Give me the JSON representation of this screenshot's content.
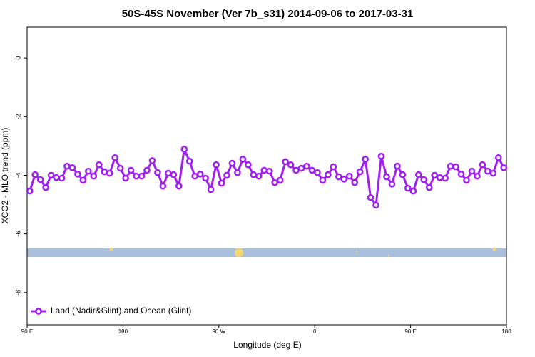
{
  "chart_data": {
    "type": "line",
    "title": "50S-45S November (Ver 7b_s31)   2014-09-06 to 2017-03-31",
    "xlabel": "Longitude (deg E)",
    "ylabel": "XCO2 - MLO trend (ppm)",
    "xlim": [
      90,
      540
    ],
    "ylim": [
      -9.1,
      1.05
    ],
    "xticks": [
      {
        "value": 90,
        "label": "90 E"
      },
      180,
      {
        "value": 270,
        "label": "90 W"
      },
      {
        "value": 360,
        "label": "0"
      },
      {
        "value": 450,
        "label": "90 E"
      },
      {
        "value": 540,
        "label": "180"
      }
    ],
    "yticks": [
      0,
      -2,
      -4,
      -6,
      -8
    ],
    "legend": "bottom-left",
    "x": [
      92.5,
      97.5,
      102.5,
      107.5,
      112.5,
      117.5,
      122.5,
      127.5,
      132.5,
      137.5,
      142.5,
      147.5,
      152.5,
      157.5,
      162.5,
      167.5,
      172.5,
      177.5,
      182.5,
      187.5,
      192.5,
      197.5,
      202.5,
      207.5,
      212.5,
      217.5,
      222.5,
      227.5,
      232.5,
      237.5,
      242.5,
      247.5,
      252.5,
      257.5,
      262.5,
      267.5,
      272.5,
      277.5,
      282.5,
      287.5,
      292.5,
      297.5,
      302.5,
      307.5,
      312.5,
      317.5,
      322.5,
      327.5,
      332.5,
      337.5,
      342.5,
      347.5,
      352.5,
      357.5,
      362.5,
      367.5,
      372.5,
      377.5,
      382.5,
      387.5,
      392.5,
      397.5,
      402.5,
      407.5,
      412.5,
      417.5,
      422.5,
      427.5,
      432.5,
      437.5,
      442.5,
      447.5,
      452.5,
      457.5,
      462.5,
      467.5,
      472.5,
      477.5,
      482.5,
      487.5,
      492.5,
      497.5,
      502.5,
      507.5,
      512.5,
      517.5,
      522.5,
      527.5,
      532.5,
      537.5
    ],
    "series": [
      {
        "name": "Land (Nadir&Glint) and Ocean (Glint)",
        "color": "#a020f0",
        "values": [
          -4.54,
          -3.98,
          -4.15,
          -4.42,
          -4.0,
          -4.08,
          -4.1,
          -3.69,
          -3.74,
          -3.96,
          -4.17,
          -3.86,
          -4.03,
          -3.64,
          -3.88,
          -3.93,
          -3.4,
          -3.76,
          -4.1,
          -3.83,
          -4.03,
          -4.03,
          -3.83,
          -3.5,
          -3.91,
          -4.37,
          -3.93,
          -3.98,
          -4.37,
          -3.11,
          -3.52,
          -4.03,
          -3.96,
          -4.1,
          -4.49,
          -3.64,
          -4.27,
          -4.0,
          -3.59,
          -3.91,
          -3.45,
          -3.64,
          -3.98,
          -4.03,
          -3.83,
          -3.86,
          -4.25,
          -4.17,
          -3.54,
          -3.64,
          -3.83,
          -3.76,
          -3.69,
          -3.83,
          -3.91,
          -4.17,
          -3.98,
          -3.71,
          -4.05,
          -4.13,
          -4.03,
          -4.25,
          -3.88,
          -3.45,
          -4.76,
          -5.02,
          -3.35,
          -4.05,
          -4.3,
          -3.69,
          -3.98,
          -4.44,
          -4.54,
          -3.98,
          -4.15,
          -4.42,
          -4.0,
          -4.08,
          -4.1,
          -3.69,
          -3.71,
          -3.96,
          -4.17,
          -3.86,
          -4.03,
          -3.64,
          -3.86,
          -3.93,
          -3.4,
          -3.74
        ]
      }
    ]
  }
}
